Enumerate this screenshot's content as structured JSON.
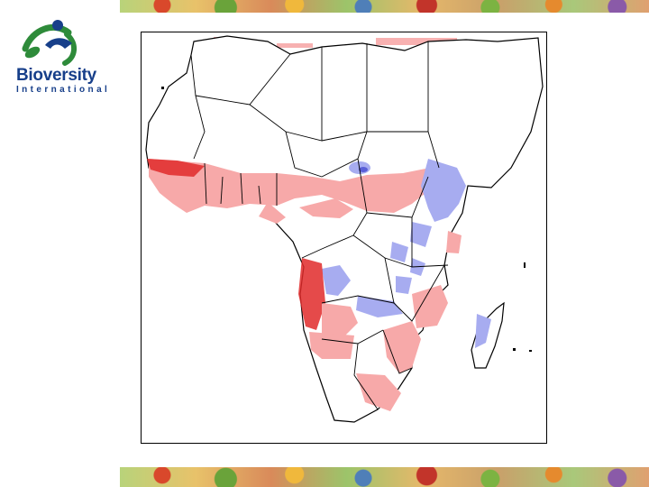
{
  "logo": {
    "name": "Bioversity",
    "subtitle": "International",
    "colors": {
      "green": "#2e8b3a",
      "blue": "#173f8a"
    }
  },
  "map": {
    "region": "Africa",
    "legend_colors": {
      "increase_light": "#f7a9a9",
      "increase_strong": "#e12a2a",
      "decrease": "#a7acf0",
      "decrease_strong": "#5a5fd8"
    }
  }
}
